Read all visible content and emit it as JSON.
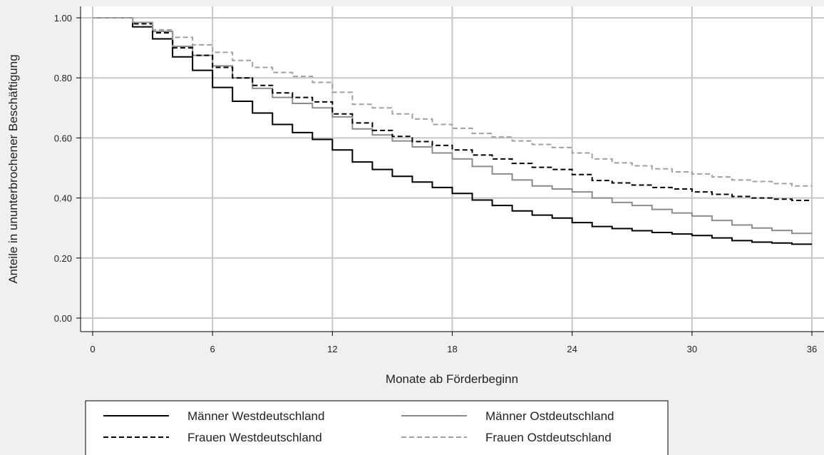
{
  "chart_data": {
    "type": "line",
    "title": "",
    "xlabel": "Monate ab Förderbeginn",
    "ylabel": "Anteile in ununterbrochener Beschäftigung",
    "xlim": [
      0,
      36
    ],
    "ylim": [
      0,
      1
    ],
    "x_ticks": [
      0,
      6,
      12,
      18,
      24,
      30,
      36
    ],
    "x_tick_labels": [
      "0",
      "6",
      "12",
      "18",
      "24",
      "30",
      "36"
    ],
    "y_ticks": [
      0,
      0.2,
      0.4,
      0.6,
      0.8,
      1.0
    ],
    "y_tick_labels": [
      "0.00",
      "0.20",
      "0.40",
      "0.60",
      "0.80",
      "1.00"
    ],
    "grid": true,
    "legend_position": "bottom",
    "step": true,
    "x": [
      0,
      1,
      2,
      3,
      4,
      5,
      6,
      7,
      8,
      9,
      10,
      11,
      12,
      13,
      14,
      15,
      16,
      17,
      18,
      19,
      20,
      21,
      22,
      23,
      24,
      25,
      26,
      27,
      28,
      29,
      30,
      31,
      32,
      33,
      34,
      35,
      36
    ],
    "series": [
      {
        "name": "Männer Westdeutschland",
        "color": "#000000",
        "dash": "solid",
        "values": [
          1.0,
          1.0,
          0.97,
          0.93,
          0.87,
          0.825,
          0.768,
          0.722,
          0.683,
          0.645,
          0.618,
          0.595,
          0.56,
          0.52,
          0.495,
          0.472,
          0.453,
          0.435,
          0.415,
          0.393,
          0.375,
          0.357,
          0.343,
          0.333,
          0.318,
          0.305,
          0.298,
          0.291,
          0.285,
          0.28,
          0.275,
          0.267,
          0.258,
          0.253,
          0.25,
          0.246,
          0.246
        ]
      },
      {
        "name": "Männer Ostdeutschland",
        "color": "#8c8c8c",
        "dash": "solid",
        "values": [
          1.0,
          1.0,
          0.985,
          0.955,
          0.905,
          0.875,
          0.84,
          0.8,
          0.765,
          0.735,
          0.715,
          0.7,
          0.67,
          0.63,
          0.61,
          0.59,
          0.57,
          0.55,
          0.53,
          0.505,
          0.48,
          0.46,
          0.44,
          0.43,
          0.42,
          0.4,
          0.385,
          0.375,
          0.362,
          0.35,
          0.34,
          0.325,
          0.31,
          0.3,
          0.292,
          0.282,
          0.282
        ]
      },
      {
        "name": "Frauen Westdeutschland",
        "color": "#000000",
        "dash": "dashed",
        "values": [
          1.0,
          1.0,
          0.98,
          0.95,
          0.9,
          0.875,
          0.835,
          0.8,
          0.775,
          0.75,
          0.735,
          0.72,
          0.68,
          0.65,
          0.625,
          0.605,
          0.588,
          0.575,
          0.56,
          0.543,
          0.53,
          0.515,
          0.502,
          0.495,
          0.478,
          0.458,
          0.45,
          0.443,
          0.435,
          0.43,
          0.42,
          0.412,
          0.405,
          0.4,
          0.396,
          0.392,
          0.392
        ]
      },
      {
        "name": "Frauen Ostdeutschland",
        "color": "#a0a0a0",
        "dash": "dashed",
        "values": [
          1.0,
          1.0,
          0.985,
          0.96,
          0.935,
          0.91,
          0.885,
          0.858,
          0.835,
          0.818,
          0.805,
          0.785,
          0.752,
          0.712,
          0.7,
          0.68,
          0.663,
          0.645,
          0.632,
          0.615,
          0.603,
          0.59,
          0.578,
          0.568,
          0.55,
          0.53,
          0.517,
          0.507,
          0.497,
          0.487,
          0.48,
          0.47,
          0.46,
          0.455,
          0.448,
          0.44,
          0.44
        ]
      }
    ]
  }
}
